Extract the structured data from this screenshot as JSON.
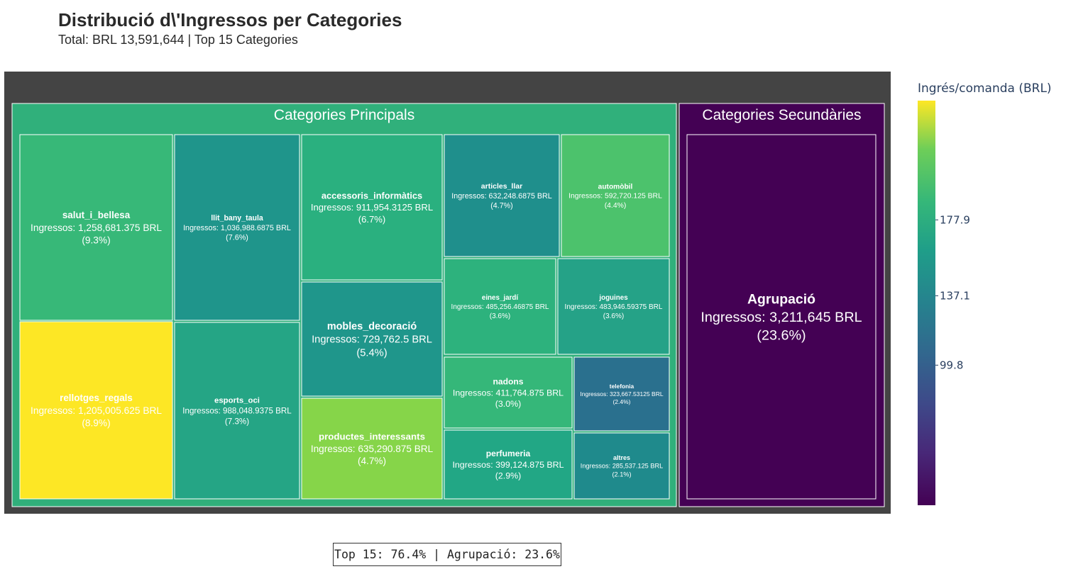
{
  "title": "Distribució d\\'Ingressos per Categories",
  "subtitle": "Total: BRL 13,591,644 | Top 15 Categories",
  "footer_note": "Top 15: 76.4% | Agrupació: 23.6%",
  "chart_data": {
    "type": "treemap",
    "value_label": "Ingressos",
    "currency": "BRL",
    "colorscale": "viridis",
    "colorbar": {
      "title": "Ingrés/comanda (BRL)",
      "ticks": [
        "177.9",
        "137.1",
        "99.8"
      ],
      "tick_values": [
        177.9,
        137.1,
        99.8
      ]
    },
    "groups": [
      {
        "name": "Categories Principals",
        "color": "#30b07b",
        "items": [
          {
            "name": "salut_i_bellesa",
            "value": 1258681.375,
            "text": "1,258,681.375",
            "pct": "(9.3%)",
            "color": "#37b878"
          },
          {
            "name": "rellotges_regals",
            "value": 1205005.625,
            "text": "1,205,005.625",
            "pct": "(8.9%)",
            "color": "#fde725"
          },
          {
            "name": "llit_bany_taula",
            "value": 1036988.6875,
            "text": "1,036,988.6875",
            "pct": "(7.6%)",
            "color": "#1f958b"
          },
          {
            "name": "esports_oci",
            "value": 988048.9375,
            "text": "988,048.9375",
            "pct": "(7.3%)",
            "color": "#25a585"
          },
          {
            "name": "accessoris_informàtics",
            "value": 911954.3125,
            "text": "911,954.3125",
            "pct": "(6.7%)",
            "color": "#2ab07f"
          },
          {
            "name": "mobles_decoració",
            "value": 729762.5,
            "text": "729,762.5",
            "pct": "(5.4%)",
            "color": "#1f968b"
          },
          {
            "name": "productes_interessants",
            "value": 635290.875,
            "text": "635,290.875",
            "pct": "(4.7%)",
            "color": "#86d549"
          },
          {
            "name": "articles_llar",
            "value": 632248.6875,
            "text": "632,248.6875",
            "pct": "(4.7%)",
            "color": "#1f8f8c"
          },
          {
            "name": "automòbil",
            "value": 592720.125,
            "text": "592,720.125",
            "pct": "(4.4%)",
            "color": "#4cc26c"
          },
          {
            "name": "eines_jardí",
            "value": 485256.46875,
            "text": "485,256.46875",
            "pct": "(3.6%)",
            "color": "#2db27d"
          },
          {
            "name": "joguines",
            "value": 483946.59375,
            "text": "483,946.59375",
            "pct": "(3.6%)",
            "color": "#25a287"
          },
          {
            "name": "nadons",
            "value": 411764.875,
            "text": "411,764.875",
            "pct": "(3.0%)",
            "color": "#35b779"
          },
          {
            "name": "telefonia",
            "value": 323667.53125,
            "text": "323,667.53125",
            "pct": "(2.4%)",
            "color": "#2a708e"
          },
          {
            "name": "perfumeria",
            "value": 399124.875,
            "text": "399,124.875",
            "pct": "(2.9%)",
            "color": "#22a785"
          },
          {
            "name": "altres",
            "value": 285537.125,
            "text": "285,537.125",
            "pct": "(2.1%)",
            "color": "#1f8a8c"
          }
        ]
      },
      {
        "name": "Categories Secundàries",
        "color": "#440154",
        "items": [
          {
            "name": "Agrupació",
            "value": 3211645,
            "text": "3,211,645",
            "pct": "(23.6%)",
            "color": "#440154"
          }
        ]
      }
    ]
  }
}
